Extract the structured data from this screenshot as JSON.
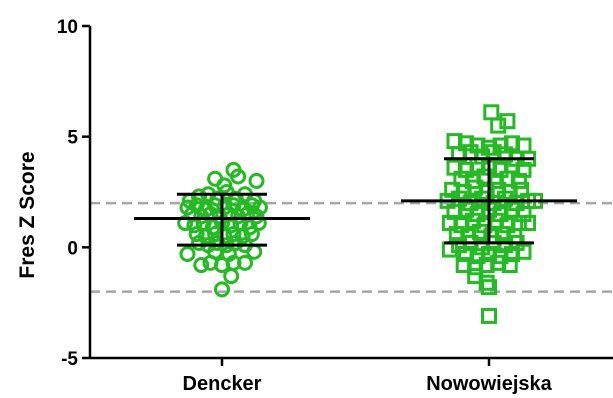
{
  "chart_data": {
    "type": "scatter",
    "subtype": "column-scatter",
    "title": "",
    "xlabel": "",
    "ylabel": "Fres Z Score",
    "ylim": [
      -5,
      10
    ],
    "yticks": [
      -5,
      0,
      5,
      10
    ],
    "grid": false,
    "legend": "none",
    "categories": [
      "Dencker",
      "Nowowiejska"
    ],
    "reference_lines": [
      {
        "y": 2,
        "style": "dashed",
        "color": "#a6a6a6"
      },
      {
        "y": -2,
        "style": "dashed",
        "color": "#a6a6a6"
      }
    ],
    "series": [
      {
        "category": "Dencker",
        "marker": "open-circle",
        "color": "#22bb22",
        "mean": 1.3,
        "sd_low": 0.1,
        "sd_high": 2.4,
        "points": [
          [
            -0.06,
            3.1
          ],
          [
            0.1,
            3.5
          ],
          [
            0.14,
            3.2
          ],
          [
            0.02,
            2.8
          ],
          [
            0.3,
            3.0
          ],
          [
            -0.28,
            2.1
          ],
          [
            -0.2,
            2.3
          ],
          [
            -0.12,
            2.4
          ],
          [
            -0.04,
            2.2
          ],
          [
            0.04,
            2.5
          ],
          [
            0.12,
            2.2
          ],
          [
            0.2,
            2.4
          ],
          [
            0.28,
            2.1
          ],
          [
            -0.3,
            1.8
          ],
          [
            -0.22,
            1.9
          ],
          [
            -0.14,
            1.7
          ],
          [
            -0.06,
            1.9
          ],
          [
            0.02,
            1.8
          ],
          [
            0.1,
            1.9
          ],
          [
            0.18,
            1.7
          ],
          [
            0.26,
            1.9
          ],
          [
            0.33,
            1.8
          ],
          [
            -0.26,
            1.5
          ],
          [
            -0.18,
            1.4
          ],
          [
            -0.1,
            1.5
          ],
          [
            -0.02,
            1.4
          ],
          [
            0.06,
            1.5
          ],
          [
            0.14,
            1.4
          ],
          [
            0.22,
            1.5
          ],
          [
            0.3,
            1.4
          ],
          [
            -0.32,
            1.1
          ],
          [
            -0.24,
            1.0
          ],
          [
            -0.16,
            1.1
          ],
          [
            -0.08,
            0.9
          ],
          [
            0.0,
            1.1
          ],
          [
            0.08,
            1.0
          ],
          [
            0.16,
            1.1
          ],
          [
            0.24,
            0.9
          ],
          [
            0.32,
            1.1
          ],
          [
            -0.22,
            0.6
          ],
          [
            -0.14,
            0.5
          ],
          [
            -0.06,
            0.6
          ],
          [
            0.02,
            0.5
          ],
          [
            0.1,
            0.6
          ],
          [
            0.18,
            0.5
          ],
          [
            0.26,
            0.6
          ],
          [
            -0.2,
            0.2
          ],
          [
            -0.12,
            0.1
          ],
          [
            -0.04,
            0.2
          ],
          [
            0.04,
            0.1
          ],
          [
            0.12,
            0.2
          ],
          [
            0.2,
            0.1
          ],
          [
            -0.3,
            -0.3
          ],
          [
            -0.06,
            -0.2
          ],
          [
            0.06,
            -0.3
          ],
          [
            0.28,
            -0.2
          ],
          [
            -0.18,
            -0.8
          ],
          [
            -0.1,
            -0.7
          ],
          [
            0.0,
            -0.8
          ],
          [
            0.1,
            -0.7
          ],
          [
            0.2,
            -0.7
          ],
          [
            0.08,
            -1.3
          ],
          [
            0.0,
            -1.9
          ]
        ]
      },
      {
        "category": "Nowowiejska",
        "marker": "open-square",
        "color": "#22bb22",
        "mean": 2.1,
        "sd_low": 0.2,
        "sd_high": 4.0,
        "points": [
          [
            0.02,
            6.1
          ],
          [
            0.08,
            5.5
          ],
          [
            0.16,
            5.7
          ],
          [
            -0.3,
            4.8
          ],
          [
            -0.2,
            4.7
          ],
          [
            -0.1,
            4.6
          ],
          [
            0.0,
            4.5
          ],
          [
            0.1,
            4.6
          ],
          [
            0.2,
            4.7
          ],
          [
            0.3,
            4.6
          ],
          [
            -0.26,
            4.2
          ],
          [
            -0.16,
            4.3
          ],
          [
            -0.06,
            4.1
          ],
          [
            0.04,
            4.3
          ],
          [
            0.14,
            4.2
          ],
          [
            0.24,
            4.0
          ],
          [
            0.34,
            4.0
          ],
          [
            -0.3,
            3.6
          ],
          [
            -0.2,
            3.5
          ],
          [
            -0.1,
            3.7
          ],
          [
            0.0,
            3.6
          ],
          [
            0.1,
            3.5
          ],
          [
            0.2,
            3.7
          ],
          [
            0.3,
            3.5
          ],
          [
            -0.24,
            3.1
          ],
          [
            -0.14,
            3.0
          ],
          [
            -0.04,
            3.2
          ],
          [
            0.06,
            3.0
          ],
          [
            0.16,
            3.1
          ],
          [
            0.26,
            3.0
          ],
          [
            -0.32,
            2.6
          ],
          [
            -0.22,
            2.5
          ],
          [
            -0.12,
            2.7
          ],
          [
            -0.02,
            2.5
          ],
          [
            0.08,
            2.6
          ],
          [
            0.18,
            2.5
          ],
          [
            0.28,
            2.6
          ],
          [
            -0.36,
            2.1
          ],
          [
            -0.26,
            2.2
          ],
          [
            -0.16,
            2.0
          ],
          [
            -0.06,
            2.2
          ],
          [
            0.04,
            2.0
          ],
          [
            0.14,
            2.2
          ],
          [
            0.24,
            2.0
          ],
          [
            0.34,
            2.1
          ],
          [
            0.4,
            2.1
          ],
          [
            -0.3,
            1.6
          ],
          [
            -0.2,
            1.7
          ],
          [
            -0.1,
            1.5
          ],
          [
            0.0,
            1.7
          ],
          [
            0.1,
            1.5
          ],
          [
            0.2,
            1.7
          ],
          [
            0.3,
            1.5
          ],
          [
            -0.34,
            1.1
          ],
          [
            -0.24,
            1.0
          ],
          [
            -0.14,
            1.2
          ],
          [
            -0.04,
            1.0
          ],
          [
            0.06,
            1.2
          ],
          [
            0.16,
            1.0
          ],
          [
            0.26,
            1.1
          ],
          [
            0.34,
            1.1
          ],
          [
            -0.28,
            0.6
          ],
          [
            -0.18,
            0.5
          ],
          [
            -0.08,
            0.7
          ],
          [
            0.02,
            0.5
          ],
          [
            0.12,
            0.6
          ],
          [
            0.22,
            0.5
          ],
          [
            -0.26,
            0.1
          ],
          [
            -0.16,
            0.2
          ],
          [
            -0.06,
            0.0
          ],
          [
            0.04,
            0.2
          ],
          [
            0.14,
            0.1
          ],
          [
            0.24,
            0.2
          ],
          [
            -0.34,
            -0.1
          ],
          [
            -0.2,
            -0.3
          ],
          [
            -0.1,
            -0.4
          ],
          [
            0.0,
            -0.3
          ],
          [
            0.1,
            -0.4
          ],
          [
            0.2,
            -0.3
          ],
          [
            0.3,
            -0.2
          ],
          [
            -0.22,
            -0.8
          ],
          [
            -0.12,
            -0.9
          ],
          [
            -0.02,
            -0.8
          ],
          [
            0.08,
            -0.7
          ],
          [
            0.18,
            -0.8
          ],
          [
            -0.12,
            -1.3
          ],
          [
            -0.02,
            -1.6
          ],
          [
            0.0,
            -1.8
          ],
          [
            0.0,
            -3.1
          ]
        ]
      }
    ]
  }
}
